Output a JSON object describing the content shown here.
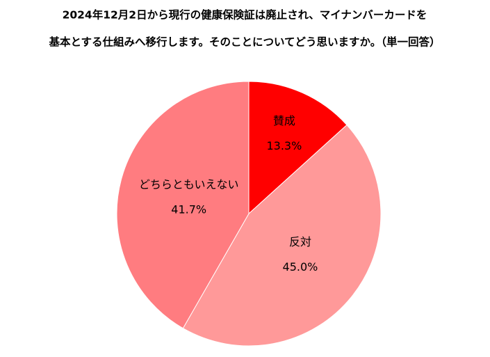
{
  "chart_data": {
    "type": "pie",
    "title": [
      "2024年12月2日から現行の健康保険証は廃止され、マイナンバーカードを",
      "基本とする仕組みへ移行します。そのことについてどう思いますか。（単一回答）"
    ],
    "categories": [
      "賛成",
      "反対",
      "どちらともいえない"
    ],
    "values": [
      13.3,
      45.0,
      41.7
    ],
    "value_labels": [
      "13.3%",
      "45.0%",
      "41.7%"
    ],
    "colors": [
      "#ff0000",
      "#ff9999",
      "#ff7c80"
    ]
  }
}
